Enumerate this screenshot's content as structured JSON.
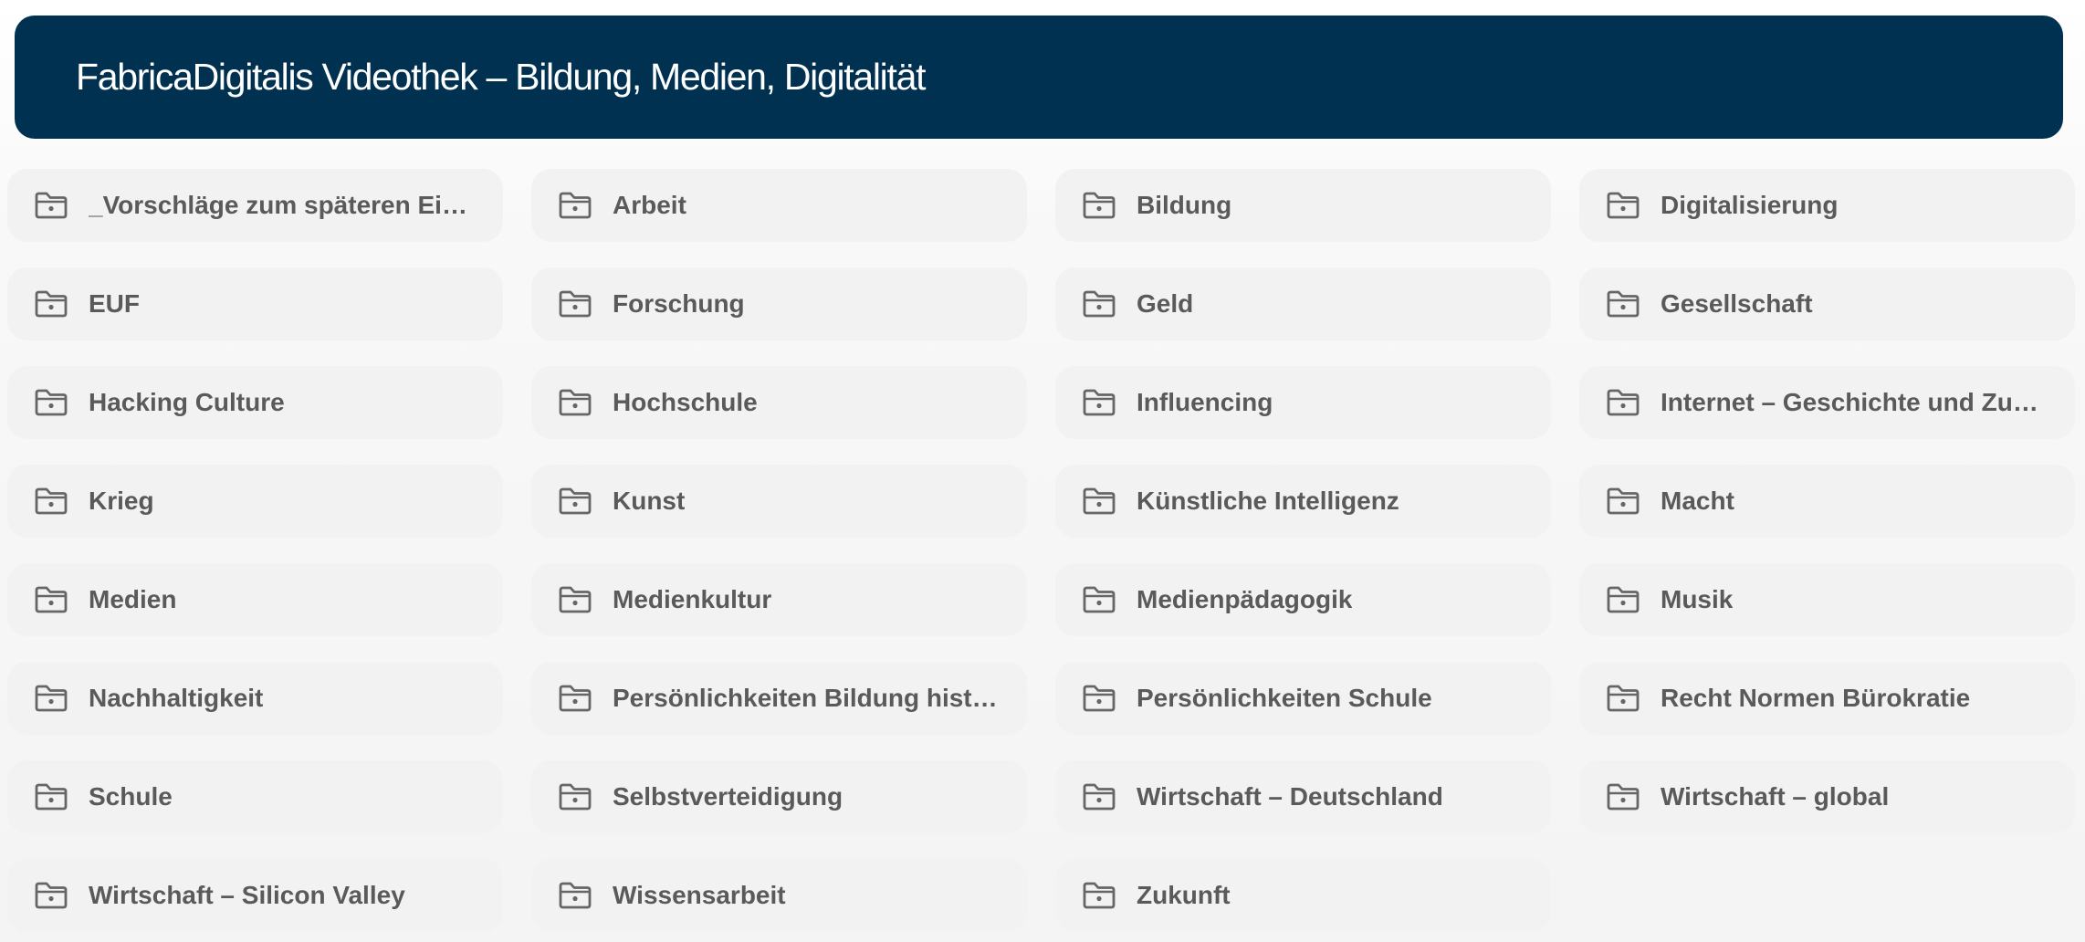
{
  "header": {
    "title": "FabricaDigitalis Videothek – Bildung, Medien, Digitalität"
  },
  "folders": [
    {
      "label": "_Vorschläge zum späteren Einsortieren",
      "icon": "folder-icon"
    },
    {
      "label": "Arbeit",
      "icon": "folder-icon"
    },
    {
      "label": "Bildung",
      "icon": "folder-icon"
    },
    {
      "label": "Digitalisierung",
      "icon": "folder-icon"
    },
    {
      "label": "EUF",
      "icon": "folder-icon"
    },
    {
      "label": "Forschung",
      "icon": "folder-icon"
    },
    {
      "label": "Geld",
      "icon": "folder-icon"
    },
    {
      "label": "Gesellschaft",
      "icon": "folder-icon"
    },
    {
      "label": "Hacking Culture",
      "icon": "folder-icon"
    },
    {
      "label": "Hochschule",
      "icon": "folder-icon"
    },
    {
      "label": "Influencing",
      "icon": "folder-icon"
    },
    {
      "label": "Internet – Geschichte und Zukunft",
      "icon": "folder-icon"
    },
    {
      "label": "Krieg",
      "icon": "folder-icon"
    },
    {
      "label": "Kunst",
      "icon": "folder-icon"
    },
    {
      "label": "Künstliche Intelligenz",
      "icon": "folder-icon"
    },
    {
      "label": "Macht",
      "icon": "folder-icon"
    },
    {
      "label": "Medien",
      "icon": "folder-icon"
    },
    {
      "label": "Medienkultur",
      "icon": "folder-icon"
    },
    {
      "label": "Medienpädagogik",
      "icon": "folder-icon"
    },
    {
      "label": "Musik",
      "icon": "folder-icon"
    },
    {
      "label": "Nachhaltigkeit",
      "icon": "folder-icon"
    },
    {
      "label": "Persönlichkeiten Bildung historisch",
      "icon": "folder-icon"
    },
    {
      "label": "Persönlichkeiten Schule",
      "icon": "folder-icon"
    },
    {
      "label": "Recht Normen Bürokratie",
      "icon": "folder-icon"
    },
    {
      "label": "Schule",
      "icon": "folder-icon"
    },
    {
      "label": "Selbstverteidigung",
      "icon": "folder-icon"
    },
    {
      "label": "Wirtschaft – Deutschland",
      "icon": "folder-icon"
    },
    {
      "label": "Wirtschaft – global",
      "icon": "folder-icon"
    },
    {
      "label": "Wirtschaft – Silicon Valley",
      "icon": "folder-icon"
    },
    {
      "label": "Wissensarbeit",
      "icon": "folder-icon"
    },
    {
      "label": "Zukunft",
      "icon": "folder-icon"
    }
  ],
  "colors": {
    "header_bg": "#003150",
    "header_text": "#ffffff",
    "card_bg": "#f2f2f2",
    "card_text": "#5a5a5a",
    "icon_stroke": "#666666"
  }
}
